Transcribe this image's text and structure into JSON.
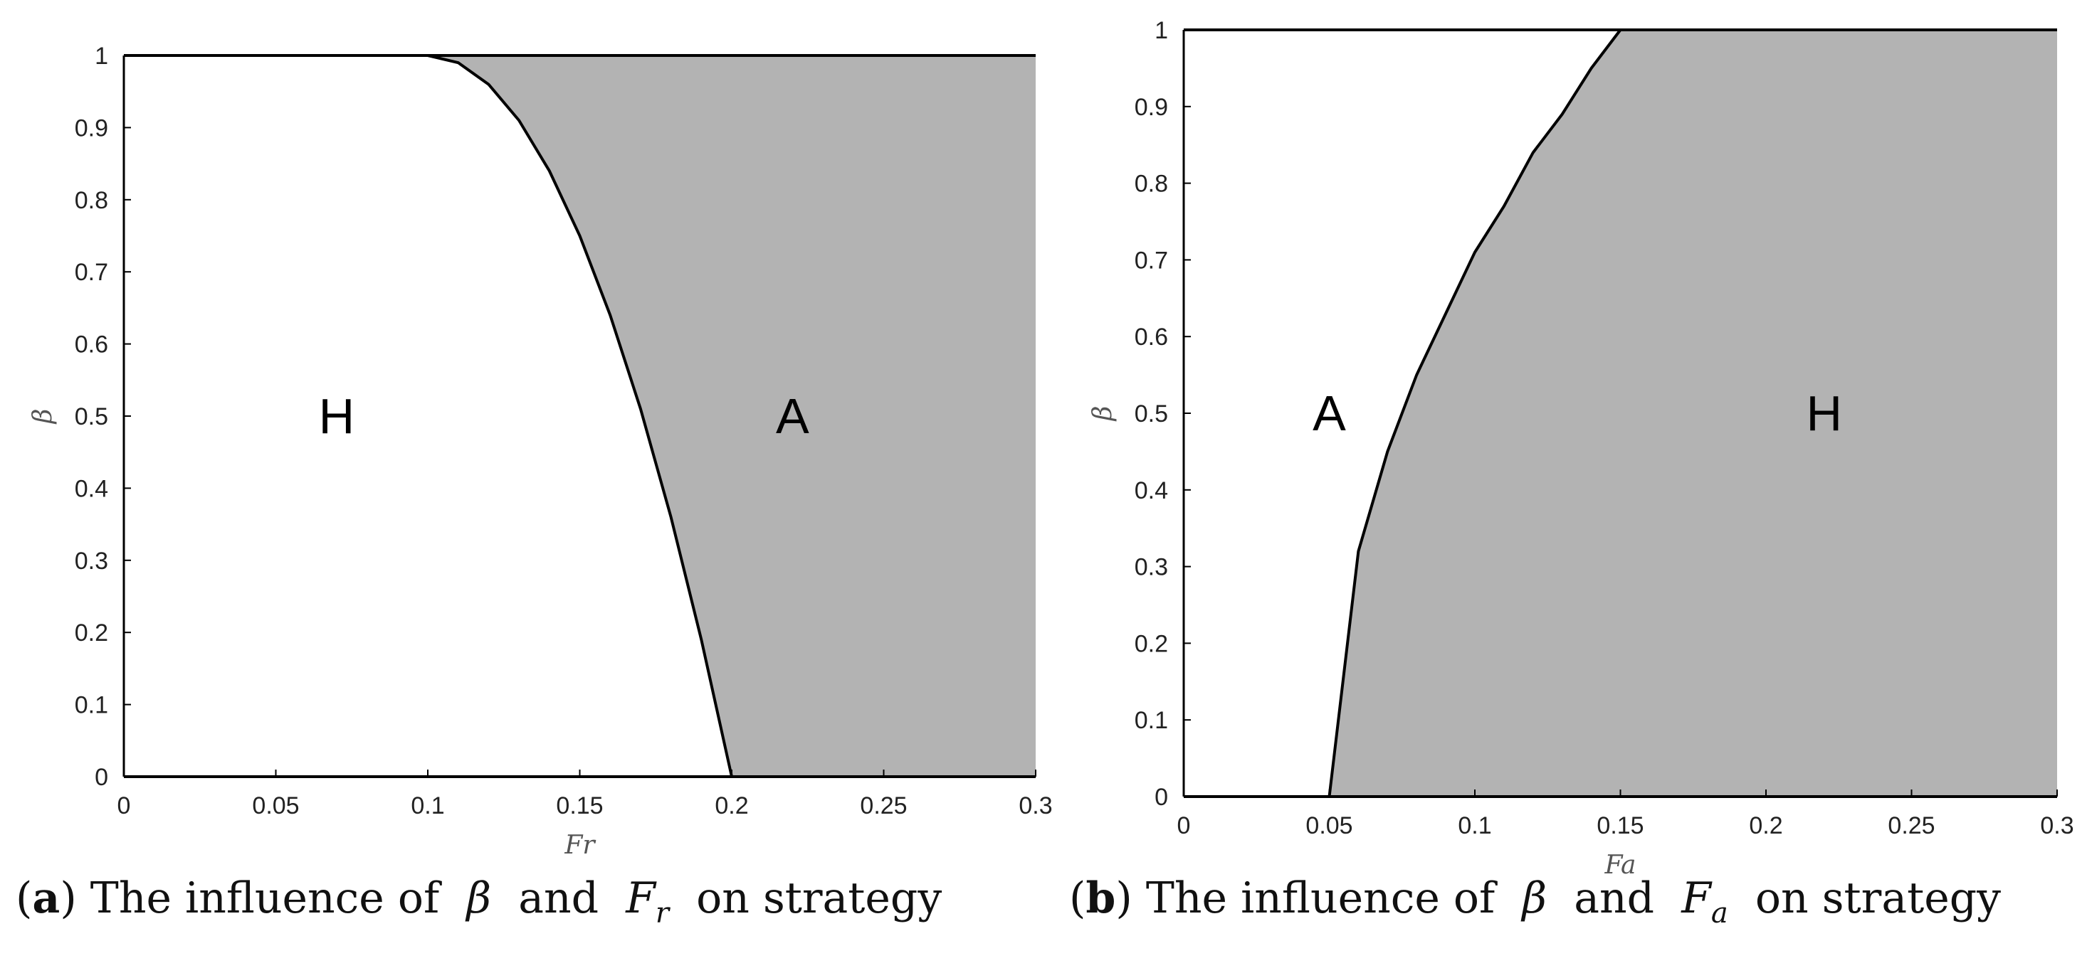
{
  "chart_data": [
    {
      "type": "area",
      "panel": "a",
      "xlabel": "Fr",
      "ylabel": "β",
      "xlim": [
        0,
        0.3
      ],
      "ylim": [
        0,
        1
      ],
      "x_ticks": [
        "0",
        "0.05",
        "0.1",
        "0.15",
        "0.2",
        "0.25",
        "0.3"
      ],
      "y_ticks": [
        "0",
        "0.1",
        "0.2",
        "0.3",
        "0.4",
        "0.5",
        "0.6",
        "0.7",
        "0.8",
        "0.9",
        "1"
      ],
      "boundary": {
        "x": [
          0.1,
          0.11,
          0.12,
          0.13,
          0.14,
          0.15,
          0.16,
          0.17,
          0.18,
          0.19,
          0.2
        ],
        "y": [
          1.0,
          0.99,
          0.96,
          0.91,
          0.84,
          0.75,
          0.64,
          0.51,
          0.36,
          0.19,
          0.0
        ]
      },
      "shaded_side": "right",
      "shade_color": "#b3b3b3",
      "regions": [
        {
          "label": "H",
          "x": 0.07,
          "y": 0.5
        },
        {
          "label": "A",
          "x": 0.22,
          "y": 0.5
        }
      ],
      "caption": {
        "letter": "a",
        "text_before": "The influence of",
        "sym1": "β",
        "and": "and",
        "sym2_base": "F",
        "sym2_sub": "r",
        "text_after": "on strategy"
      }
    },
    {
      "type": "area",
      "panel": "b",
      "xlabel": "Fa",
      "ylabel": "β",
      "xlim": [
        0,
        0.3
      ],
      "ylim": [
        0,
        1
      ],
      "x_ticks": [
        "0",
        "0.05",
        "0.1",
        "0.15",
        "0.2",
        "0.25",
        "0.3"
      ],
      "y_ticks": [
        "0",
        "0.1",
        "0.2",
        "0.3",
        "0.4",
        "0.5",
        "0.6",
        "0.7",
        "0.8",
        "0.9",
        "1"
      ],
      "boundary": {
        "x": [
          0.05,
          0.06,
          0.07,
          0.08,
          0.09,
          0.1,
          0.11,
          0.12,
          0.13,
          0.14,
          0.15
        ],
        "y": [
          0.0,
          0.32,
          0.45,
          0.55,
          0.63,
          0.71,
          0.77,
          0.84,
          0.89,
          0.95,
          1.0
        ]
      },
      "shaded_side": "right",
      "shade_color": "#b3b3b3",
      "regions": [
        {
          "label": "A",
          "x": 0.05,
          "y": 0.5
        },
        {
          "label": "H",
          "x": 0.22,
          "y": 0.5
        }
      ],
      "caption": {
        "letter": "b",
        "text_before": "The influence of",
        "sym1": "β",
        "and": "and",
        "sym2_base": "F",
        "sym2_sub": "a",
        "text_after": "on strategy"
      }
    }
  ]
}
